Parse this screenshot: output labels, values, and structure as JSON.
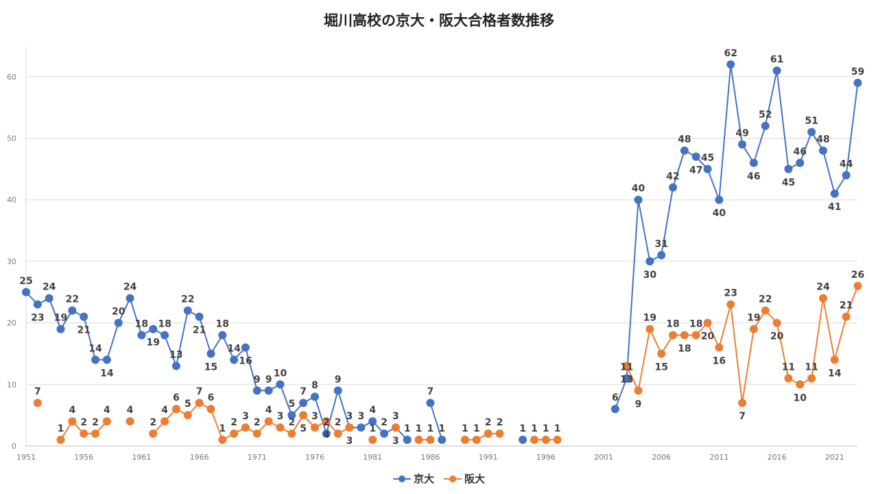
{
  "chart_data": {
    "type": "line",
    "title": "堀川高校の京大・阪大合格者数推移",
    "xlabel": "",
    "ylabel": "",
    "xlim": [
      1951,
      2023
    ],
    "ylim": [
      0,
      65
    ],
    "yticks": [
      0,
      10,
      20,
      30,
      40,
      50,
      60
    ],
    "xticks": [
      1951,
      1956,
      1961,
      1966,
      1971,
      1976,
      1981,
      1986,
      1991,
      1996,
      2001,
      2006,
      2011,
      2016,
      2021
    ],
    "grid": true,
    "legend": "bottom",
    "series": [
      {
        "name": "京大",
        "color": "#4472C4",
        "points": [
          [
            1951,
            25
          ],
          [
            1952,
            23
          ],
          [
            1953,
            24
          ],
          [
            1954,
            19
          ],
          [
            1955,
            22
          ],
          [
            1956,
            21
          ],
          [
            1957,
            14
          ],
          [
            1958,
            14
          ],
          [
            1959,
            20
          ],
          [
            1960,
            24
          ],
          [
            1961,
            18
          ],
          [
            1962,
            19
          ],
          [
            1963,
            18
          ],
          [
            1964,
            13
          ],
          [
            1965,
            22
          ],
          [
            1966,
            21
          ],
          [
            1967,
            15
          ],
          [
            1968,
            18
          ],
          [
            1969,
            14
          ],
          [
            1970,
            16
          ],
          [
            1971,
            9
          ],
          [
            1972,
            9
          ],
          [
            1973,
            10
          ],
          [
            1974,
            5
          ],
          [
            1975,
            7
          ],
          [
            1976,
            8
          ],
          [
            1977,
            2
          ],
          [
            1978,
            9
          ],
          [
            1979,
            3
          ],
          [
            1980,
            3
          ],
          [
            1981,
            4
          ],
          [
            1982,
            2
          ],
          [
            1983,
            3
          ],
          [
            1984,
            1
          ],
          [
            1985,
            null
          ],
          [
            1986,
            7
          ],
          [
            1987,
            1
          ],
          [
            1988,
            null
          ],
          [
            1989,
            null
          ],
          [
            1990,
            null
          ],
          [
            1991,
            null
          ],
          [
            1992,
            null
          ],
          [
            1993,
            null
          ],
          [
            1994,
            1
          ],
          [
            1995,
            null
          ],
          [
            1996,
            null
          ],
          [
            1997,
            null
          ],
          [
            1998,
            null
          ],
          [
            1999,
            null
          ],
          [
            2000,
            null
          ],
          [
            2001,
            null
          ],
          [
            2002,
            6
          ],
          [
            2003,
            11
          ],
          [
            2004,
            40
          ],
          [
            2005,
            30
          ],
          [
            2006,
            31
          ],
          [
            2007,
            42
          ],
          [
            2008,
            48
          ],
          [
            2009,
            47
          ],
          [
            2010,
            45
          ],
          [
            2011,
            40
          ],
          [
            2012,
            62
          ],
          [
            2013,
            49
          ],
          [
            2014,
            46
          ],
          [
            2015,
            52
          ],
          [
            2016,
            61
          ],
          [
            2017,
            45
          ],
          [
            2018,
            46
          ],
          [
            2019,
            51
          ],
          [
            2020,
            48
          ],
          [
            2021,
            41
          ],
          [
            2022,
            44
          ],
          [
            2023,
            59
          ]
        ]
      },
      {
        "name": "阪大",
        "color": "#ED7D31",
        "points": [
          [
            1951,
            null
          ],
          [
            1952,
            7
          ],
          [
            1953,
            null
          ],
          [
            1954,
            1
          ],
          [
            1955,
            4
          ],
          [
            1956,
            2
          ],
          [
            1957,
            2
          ],
          [
            1958,
            4
          ],
          [
            1959,
            null
          ],
          [
            1960,
            4
          ],
          [
            1961,
            null
          ],
          [
            1962,
            2
          ],
          [
            1963,
            4
          ],
          [
            1964,
            6
          ],
          [
            1965,
            5
          ],
          [
            1966,
            7
          ],
          [
            1967,
            6
          ],
          [
            1968,
            1
          ],
          [
            1969,
            2
          ],
          [
            1970,
            3
          ],
          [
            1971,
            2
          ],
          [
            1972,
            4
          ],
          [
            1973,
            3
          ],
          [
            1974,
            2
          ],
          [
            1975,
            5
          ],
          [
            1976,
            3
          ],
          [
            1977,
            4
          ],
          [
            1978,
            2
          ],
          [
            1979,
            3
          ],
          [
            1980,
            null
          ],
          [
            1981,
            1
          ],
          [
            1982,
            null
          ],
          [
            1983,
            3
          ],
          [
            1984,
            null
          ],
          [
            1985,
            1
          ],
          [
            1986,
            1
          ],
          [
            1987,
            null
          ],
          [
            1988,
            null
          ],
          [
            1989,
            1
          ],
          [
            1990,
            1
          ],
          [
            1991,
            2
          ],
          [
            1992,
            2
          ],
          [
            1993,
            null
          ],
          [
            1994,
            null
          ],
          [
            1995,
            1
          ],
          [
            1996,
            1
          ],
          [
            1997,
            1
          ],
          [
            1998,
            null
          ],
          [
            1999,
            null
          ],
          [
            2000,
            null
          ],
          [
            2001,
            null
          ],
          [
            2002,
            null
          ],
          [
            2003,
            13
          ],
          [
            2004,
            9
          ],
          [
            2005,
            19
          ],
          [
            2006,
            15
          ],
          [
            2007,
            18
          ],
          [
            2008,
            18
          ],
          [
            2009,
            18
          ],
          [
            2010,
            20
          ],
          [
            2011,
            16
          ],
          [
            2012,
            23
          ],
          [
            2013,
            7
          ],
          [
            2014,
            19
          ],
          [
            2015,
            22
          ],
          [
            2016,
            20
          ],
          [
            2017,
            11
          ],
          [
            2018,
            10
          ],
          [
            2019,
            11
          ],
          [
            2020,
            24
          ],
          [
            2021,
            14
          ],
          [
            2022,
            21
          ],
          [
            2023,
            26
          ]
        ]
      }
    ]
  }
}
